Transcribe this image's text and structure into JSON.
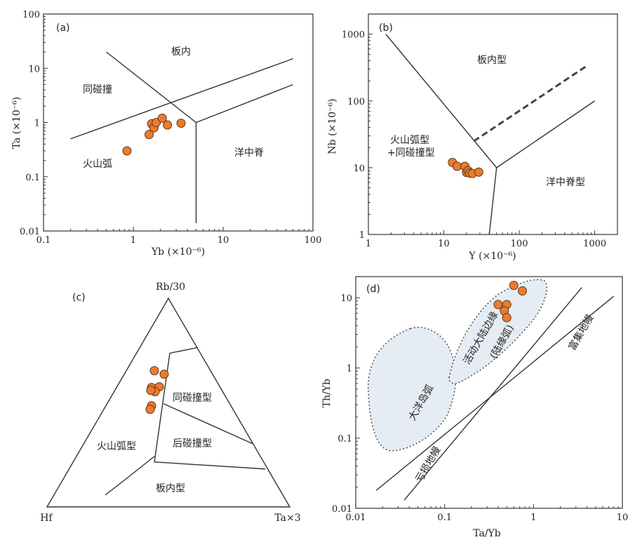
{
  "chart_data": [
    {
      "id": "a",
      "type": "scatter",
      "panel_label": "(a)",
      "xscale": "log",
      "yscale": "log",
      "xlim": [
        0.1,
        100
      ],
      "ylim": [
        0.01,
        100
      ],
      "xlabel": "Yb (×10⁻⁶)",
      "ylabel": "Ta (×10⁻⁶)",
      "x_ticks": [
        "0.1",
        "1",
        "10",
        "100"
      ],
      "y_ticks": [
        "0.01",
        "0.1",
        "1",
        "10",
        "100"
      ],
      "region_labels": [
        "板内",
        "同碰撞",
        "火山弧",
        "洋中脊"
      ],
      "boundaries": [
        [
          [
            0.5,
            20
          ],
          [
            5,
            1
          ]
        ],
        [
          [
            0.2,
            0.5
          ],
          [
            60,
            15
          ]
        ],
        [
          [
            5,
            1
          ],
          [
            60,
            5
          ]
        ],
        [
          [
            5,
            1
          ],
          [
            5,
            0.014
          ]
        ]
      ],
      "points": [
        [
          0.85,
          0.3
        ],
        [
          1.5,
          0.6
        ],
        [
          1.6,
          0.95
        ],
        [
          1.7,
          0.8
        ],
        [
          1.8,
          1.0
        ],
        [
          2.1,
          1.2
        ],
        [
          2.4,
          0.9
        ],
        [
          3.4,
          0.97
        ]
      ]
    },
    {
      "id": "b",
      "type": "scatter",
      "panel_label": "(b)",
      "xscale": "log",
      "yscale": "log",
      "xlim": [
        1,
        2000
      ],
      "ylim": [
        1,
        2000
      ],
      "xlabel": "Y (×10⁻⁶)",
      "ylabel": "Nb (×10⁻⁶)",
      "x_ticks": [
        "1",
        "10",
        "100",
        "1000"
      ],
      "y_ticks": [
        "1",
        "10",
        "100",
        "1000"
      ],
      "region_labels": [
        "板内型",
        "火山弧型",
        "+同碰撞型",
        "洋中脊型"
      ],
      "boundaries": [
        [
          [
            1.7,
            1000
          ],
          [
            50,
            10
          ]
        ],
        [
          [
            50,
            10
          ],
          [
            40,
            1
          ]
        ],
        [
          [
            50,
            10
          ],
          [
            1000,
            100
          ]
        ]
      ],
      "dashed_boundary": [
        [
          25,
          25
        ],
        [
          800,
          340
        ]
      ],
      "points": [
        [
          13,
          12
        ],
        [
          15,
          10.5
        ],
        [
          19,
          10.5
        ],
        [
          20,
          8.5
        ],
        [
          21,
          9
        ],
        [
          22,
          8.3
        ],
        [
          24,
          8.2
        ],
        [
          29,
          8.6
        ]
      ]
    },
    {
      "id": "c",
      "type": "ternary",
      "panel_label": "(c)",
      "apex_labels": {
        "top": "Rb/30",
        "left": "Hf",
        "right": "Ta×3"
      },
      "region_labels": [
        "同碰撞型",
        "火山弧型",
        "后碰撞型",
        "板内型"
      ],
      "points_count": 8
    },
    {
      "id": "d",
      "type": "scatter",
      "panel_label": "(d)",
      "xscale": "log",
      "yscale": "log",
      "xlim": [
        0.01,
        10
      ],
      "ylim": [
        0.01,
        20
      ],
      "xlabel": "Ta/Yb",
      "ylabel": "Th/Yb",
      "x_ticks": [
        "0.01",
        "0.1",
        "1",
        "10"
      ],
      "y_ticks": [
        "0.01",
        "0.1",
        "1",
        "10"
      ],
      "region_labels": [
        "大洋岛弧",
        "活动大陆边缘",
        "(陆缘弧)",
        "富集地幔",
        "亏损地幔"
      ],
      "mantle_lines": [
        [
          [
            0.017,
            0.018
          ],
          [
            8,
            10.5
          ]
        ],
        [
          [
            0.035,
            0.013
          ],
          [
            3.5,
            14
          ]
        ]
      ],
      "points": [
        [
          0.6,
          15
        ],
        [
          0.75,
          12.5
        ],
        [
          0.4,
          8
        ],
        [
          0.5,
          8
        ],
        [
          0.47,
          6.5
        ],
        [
          0.5,
          5.2
        ]
      ]
    }
  ]
}
